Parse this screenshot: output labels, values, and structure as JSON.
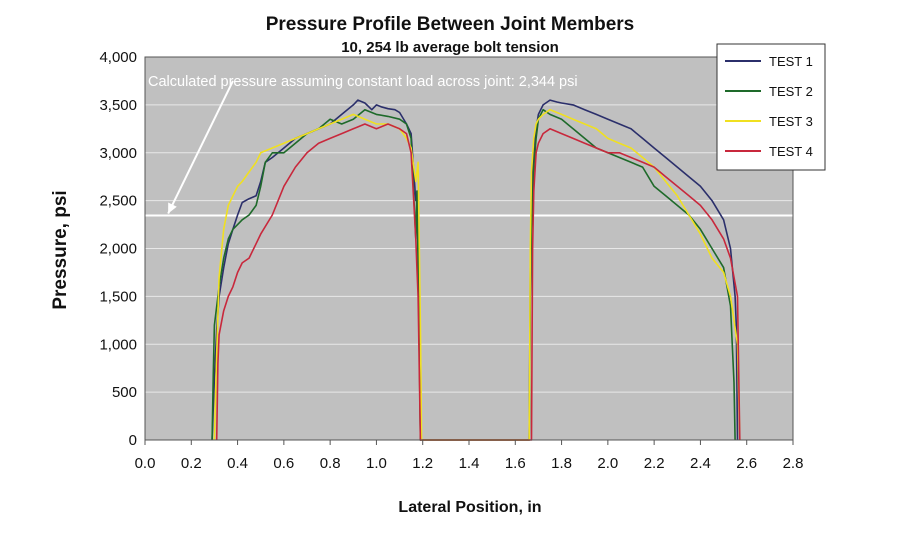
{
  "chart_data": {
    "type": "line",
    "title": "Pressure Profile Between Joint Members",
    "subtitle": "10, 254 lb average bolt tension",
    "xlabel": "Lateral Position, in",
    "ylabel": "Pressure, psi",
    "xlim": [
      0,
      2.8
    ],
    "ylim": [
      0,
      4000
    ],
    "x_ticks": [
      "0.0",
      "0.2",
      "0.4",
      "0.6",
      "0.8",
      "1.0",
      "1.2",
      "1.4",
      "1.6",
      "1.8",
      "2.0",
      "2.2",
      "2.4",
      "2.6",
      "2.8"
    ],
    "y_ticks": [
      "0",
      "500",
      "1,000",
      "1,500",
      "2,000",
      "2,500",
      "3,000",
      "3,500",
      "4,000"
    ],
    "grid": true,
    "legend_position": "top-right",
    "reference_line": {
      "y": 2344,
      "label": "Calculated pressure assuming constant load across joint: 2,344 psi",
      "color": "#ffffff"
    },
    "series": [
      {
        "name": "TEST 1",
        "color": "#2b2f6b",
        "points": [
          [
            0.29,
            0
          ],
          [
            0.3,
            650
          ],
          [
            0.31,
            1150
          ],
          [
            0.32,
            1500
          ],
          [
            0.34,
            1800
          ],
          [
            0.36,
            2050
          ],
          [
            0.38,
            2200
          ],
          [
            0.4,
            2350
          ],
          [
            0.42,
            2480
          ],
          [
            0.45,
            2520
          ],
          [
            0.48,
            2550
          ],
          [
            0.5,
            2700
          ],
          [
            0.52,
            2900
          ],
          [
            0.55,
            2950
          ],
          [
            0.6,
            3050
          ],
          [
            0.65,
            3150
          ],
          [
            0.7,
            3200
          ],
          [
            0.75,
            3250
          ],
          [
            0.8,
            3300
          ],
          [
            0.85,
            3400
          ],
          [
            0.9,
            3500
          ],
          [
            0.92,
            3550
          ],
          [
            0.95,
            3520
          ],
          [
            0.98,
            3450
          ],
          [
            1.0,
            3500
          ],
          [
            1.02,
            3480
          ],
          [
            1.05,
            3460
          ],
          [
            1.08,
            3450
          ],
          [
            1.1,
            3420
          ],
          [
            1.13,
            3300
          ],
          [
            1.15,
            3200
          ],
          [
            1.17,
            2500
          ],
          [
            1.18,
            2600
          ],
          [
            1.185,
            1500
          ],
          [
            1.19,
            0
          ],
          [
            1.66,
            0
          ],
          [
            1.665,
            1800
          ],
          [
            1.67,
            2500
          ],
          [
            1.68,
            3050
          ],
          [
            1.69,
            3250
          ],
          [
            1.7,
            3400
          ],
          [
            1.72,
            3500
          ],
          [
            1.75,
            3550
          ],
          [
            1.78,
            3530
          ],
          [
            1.8,
            3520
          ],
          [
            1.85,
            3500
          ],
          [
            1.9,
            3450
          ],
          [
            1.95,
            3400
          ],
          [
            2.0,
            3350
          ],
          [
            2.05,
            3300
          ],
          [
            2.1,
            3250
          ],
          [
            2.15,
            3150
          ],
          [
            2.2,
            3050
          ],
          [
            2.25,
            2950
          ],
          [
            2.3,
            2850
          ],
          [
            2.35,
            2750
          ],
          [
            2.4,
            2650
          ],
          [
            2.45,
            2500
          ],
          [
            2.5,
            2300
          ],
          [
            2.53,
            2000
          ],
          [
            2.55,
            1500
          ],
          [
            2.555,
            1200
          ],
          [
            2.56,
            0
          ]
        ]
      },
      {
        "name": "TEST 2",
        "color": "#1e6a2a",
        "points": [
          [
            0.29,
            0
          ],
          [
            0.295,
            700
          ],
          [
            0.3,
            1200
          ],
          [
            0.32,
            1600
          ],
          [
            0.34,
            1900
          ],
          [
            0.36,
            2100
          ],
          [
            0.38,
            2200
          ],
          [
            0.4,
            2250
          ],
          [
            0.42,
            2300
          ],
          [
            0.45,
            2350
          ],
          [
            0.48,
            2450
          ],
          [
            0.5,
            2650
          ],
          [
            0.52,
            2900
          ],
          [
            0.55,
            3000
          ],
          [
            0.6,
            3000
          ],
          [
            0.65,
            3100
          ],
          [
            0.7,
            3200
          ],
          [
            0.75,
            3250
          ],
          [
            0.8,
            3350
          ],
          [
            0.85,
            3300
          ],
          [
            0.9,
            3350
          ],
          [
            0.95,
            3450
          ],
          [
            1.0,
            3400
          ],
          [
            1.05,
            3380
          ],
          [
            1.1,
            3350
          ],
          [
            1.13,
            3300
          ],
          [
            1.15,
            3150
          ],
          [
            1.17,
            2100
          ],
          [
            1.175,
            2600
          ],
          [
            1.18,
            1800
          ],
          [
            1.185,
            1000
          ],
          [
            1.19,
            0
          ],
          [
            1.66,
            0
          ],
          [
            1.665,
            1500
          ],
          [
            1.67,
            2200
          ],
          [
            1.68,
            2850
          ],
          [
            1.69,
            3150
          ],
          [
            1.7,
            3350
          ],
          [
            1.72,
            3450
          ],
          [
            1.75,
            3400
          ],
          [
            1.8,
            3350
          ],
          [
            1.85,
            3250
          ],
          [
            1.9,
            3150
          ],
          [
            1.95,
            3050
          ],
          [
            2.0,
            3000
          ],
          [
            2.05,
            2950
          ],
          [
            2.1,
            2900
          ],
          [
            2.15,
            2850
          ],
          [
            2.2,
            2650
          ],
          [
            2.25,
            2550
          ],
          [
            2.3,
            2450
          ],
          [
            2.35,
            2350
          ],
          [
            2.4,
            2200
          ],
          [
            2.45,
            2000
          ],
          [
            2.5,
            1800
          ],
          [
            2.53,
            1400
          ],
          [
            2.545,
            600
          ],
          [
            2.55,
            0
          ]
        ]
      },
      {
        "name": "TEST 3",
        "color": "#f0e020",
        "points": [
          [
            0.3,
            0
          ],
          [
            0.31,
            900
          ],
          [
            0.32,
            1700
          ],
          [
            0.34,
            2200
          ],
          [
            0.36,
            2450
          ],
          [
            0.38,
            2550
          ],
          [
            0.4,
            2650
          ],
          [
            0.42,
            2700
          ],
          [
            0.45,
            2800
          ],
          [
            0.48,
            2900
          ],
          [
            0.5,
            3000
          ],
          [
            0.55,
            3050
          ],
          [
            0.6,
            3100
          ],
          [
            0.65,
            3150
          ],
          [
            0.7,
            3200
          ],
          [
            0.75,
            3250
          ],
          [
            0.8,
            3300
          ],
          [
            0.85,
            3350
          ],
          [
            0.9,
            3400
          ],
          [
            0.95,
            3350
          ],
          [
            1.0,
            3300
          ],
          [
            1.05,
            3300
          ],
          [
            1.1,
            3250
          ],
          [
            1.13,
            3150
          ],
          [
            1.15,
            3050
          ],
          [
            1.17,
            2700
          ],
          [
            1.18,
            2900
          ],
          [
            1.19,
            1200
          ],
          [
            1.195,
            0
          ],
          [
            1.66,
            0
          ],
          [
            1.665,
            2000
          ],
          [
            1.67,
            2800
          ],
          [
            1.68,
            3150
          ],
          [
            1.69,
            3300
          ],
          [
            1.7,
            3350
          ],
          [
            1.72,
            3400
          ],
          [
            1.75,
            3450
          ],
          [
            1.8,
            3400
          ],
          [
            1.85,
            3350
          ],
          [
            1.9,
            3300
          ],
          [
            1.95,
            3250
          ],
          [
            2.0,
            3150
          ],
          [
            2.05,
            3100
          ],
          [
            2.1,
            3050
          ],
          [
            2.15,
            2950
          ],
          [
            2.2,
            2850
          ],
          [
            2.25,
            2700
          ],
          [
            2.3,
            2550
          ],
          [
            2.35,
            2350
          ],
          [
            2.4,
            2150
          ],
          [
            2.45,
            1900
          ],
          [
            2.5,
            1750
          ],
          [
            2.53,
            1500
          ],
          [
            2.56,
            1000
          ],
          [
            2.57,
            0
          ]
        ]
      },
      {
        "name": "TEST 4",
        "color": "#c8283c",
        "points": [
          [
            0.31,
            0
          ],
          [
            0.315,
            800
          ],
          [
            0.32,
            1100
          ],
          [
            0.34,
            1350
          ],
          [
            0.36,
            1500
          ],
          [
            0.38,
            1600
          ],
          [
            0.4,
            1750
          ],
          [
            0.42,
            1850
          ],
          [
            0.45,
            1900
          ],
          [
            0.48,
            2050
          ],
          [
            0.5,
            2150
          ],
          [
            0.55,
            2350
          ],
          [
            0.6,
            2650
          ],
          [
            0.65,
            2850
          ],
          [
            0.7,
            3000
          ],
          [
            0.75,
            3100
          ],
          [
            0.8,
            3150
          ],
          [
            0.85,
            3200
          ],
          [
            0.9,
            3250
          ],
          [
            0.95,
            3300
          ],
          [
            1.0,
            3250
          ],
          [
            1.05,
            3300
          ],
          [
            1.1,
            3250
          ],
          [
            1.13,
            3200
          ],
          [
            1.15,
            3000
          ],
          [
            1.17,
            2100
          ],
          [
            1.175,
            1800
          ],
          [
            1.18,
            1500
          ],
          [
            1.19,
            0
          ],
          [
            1.67,
            0
          ],
          [
            1.675,
            2000
          ],
          [
            1.68,
            2600
          ],
          [
            1.69,
            3000
          ],
          [
            1.7,
            3100
          ],
          [
            1.72,
            3200
          ],
          [
            1.75,
            3250
          ],
          [
            1.8,
            3200
          ],
          [
            1.85,
            3150
          ],
          [
            1.9,
            3100
          ],
          [
            1.95,
            3050
          ],
          [
            2.0,
            3000
          ],
          [
            2.05,
            3000
          ],
          [
            2.1,
            2950
          ],
          [
            2.15,
            2900
          ],
          [
            2.2,
            2850
          ],
          [
            2.25,
            2750
          ],
          [
            2.3,
            2650
          ],
          [
            2.35,
            2550
          ],
          [
            2.4,
            2450
          ],
          [
            2.45,
            2300
          ],
          [
            2.5,
            2100
          ],
          [
            2.53,
            1900
          ],
          [
            2.56,
            1500
          ],
          [
            2.57,
            0
          ]
        ]
      }
    ]
  }
}
